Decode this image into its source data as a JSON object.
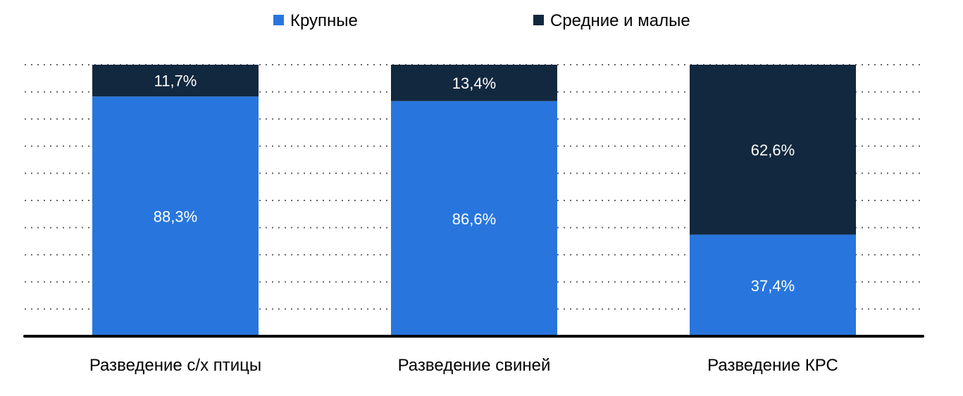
{
  "chart_data": {
    "type": "bar",
    "stacked": true,
    "categories": [
      "Разведение с/х птицы",
      "Разведение свиней",
      "Разведение КРС"
    ],
    "series": [
      {
        "name": "Крупные",
        "color": "#2876dd",
        "values": [
          88.3,
          86.6,
          37.4
        ],
        "labels": [
          "88,3%",
          "86,6%",
          "37,4%"
        ]
      },
      {
        "name": "Средние и малые",
        "color": "#12283f",
        "values": [
          11.7,
          13.4,
          62.6
        ],
        "labels": [
          "11,7%",
          "13,4%",
          "62,6%"
        ]
      }
    ],
    "ylim": [
      0,
      100
    ],
    "grid": true,
    "legend": "top-center",
    "y_axis_labels_shown": false
  }
}
